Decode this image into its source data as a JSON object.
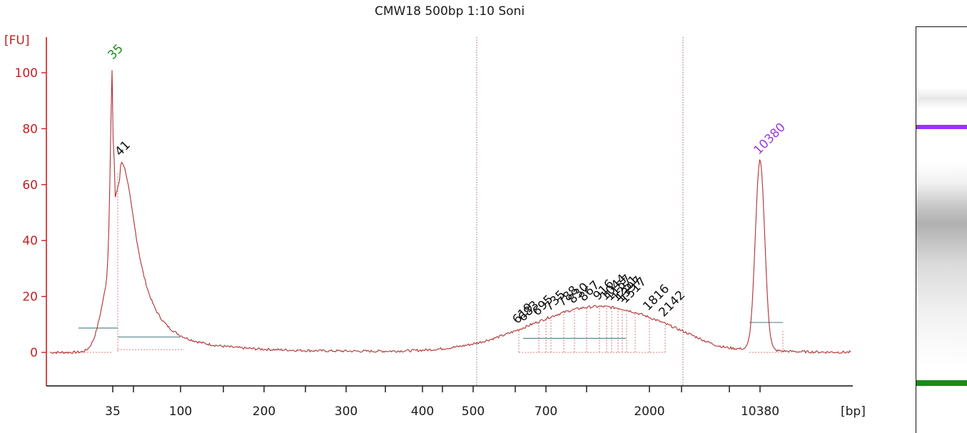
{
  "chart_data": {
    "type": "line",
    "title": "CMW18 500bp 1:10 Soni",
    "ylabel": "[FU]",
    "xlabel": "[bp]",
    "ylim": [
      -12,
      112
    ],
    "y_ticks": [
      0,
      20,
      40,
      60,
      80,
      100
    ],
    "x_ticks": [
      "35",
      "100",
      "200",
      "300",
      "400",
      "500",
      "700",
      "2000",
      "10380"
    ],
    "grid": false,
    "series": [
      {
        "color": "#b03030",
        "points": [
          [
            "35",
            102
          ],
          [
            "41",
            68
          ],
          [
            "100",
            1
          ],
          [
            "200",
            0
          ],
          [
            "300",
            0
          ],
          [
            "400",
            0
          ],
          [
            "500",
            1
          ],
          [
            "619",
            5
          ],
          [
            "700",
            9
          ],
          [
            "916",
            15
          ],
          [
            "1157",
            16.5
          ],
          [
            "1517",
            14
          ],
          [
            "2000",
            8
          ],
          [
            "2142",
            5
          ],
          [
            "10380",
            68
          ]
        ]
      }
    ],
    "peaks": [
      {
        "label": "35",
        "value": 102,
        "color": "#1e8a1e"
      },
      {
        "label": "41",
        "value": 68,
        "color": "#111111"
      },
      {
        "label": "10380",
        "value": 68,
        "color": "#9a3ce0"
      }
    ],
    "smear_labels": [
      "619",
      "683",
      "695",
      "735",
      "788",
      "830",
      "867",
      "916",
      "1044",
      "1157",
      "1251",
      "1397",
      "1517",
      "1816",
      "2142"
    ]
  },
  "gel": {
    "upper_band_color": "#9933ff",
    "lower_band_color": "#1a8a1a"
  }
}
